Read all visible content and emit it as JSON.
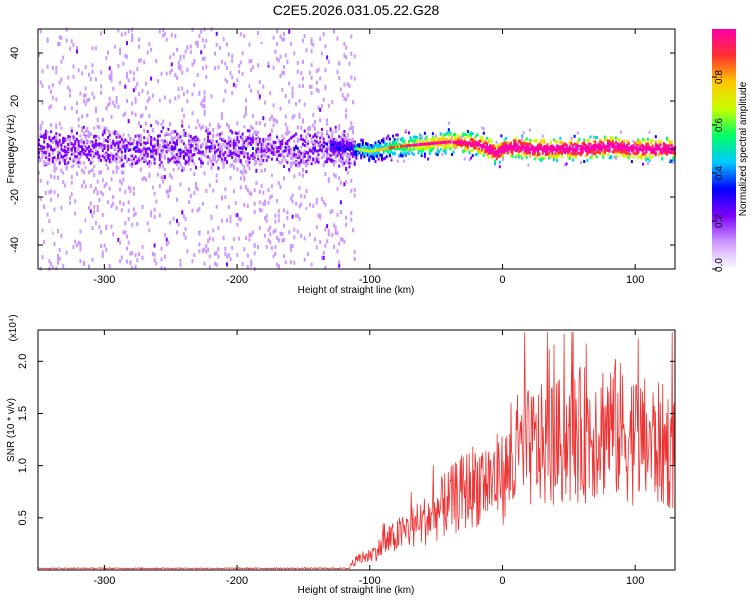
{
  "title": "C2E5.2026.031.05.22.G28",
  "chart_data": [
    {
      "type": "heatmap",
      "xlabel": "Height of straight line (km)",
      "ylabel": "Frequency (Hz)",
      "xlim": [
        -350,
        130
      ],
      "ylim": [
        -50,
        50
      ],
      "xticks": [
        -300,
        -200,
        -100,
        0,
        100
      ],
      "yticks": [
        -40,
        -20,
        0,
        20,
        40
      ],
      "colorbar": {
        "label": "Normalized spectral amplitude",
        "range": [
          0,
          1
        ],
        "ticks": [
          "0.0",
          "0.2",
          "0.4",
          "0.6",
          "0.8"
        ],
        "colors": [
          "#ffffff",
          "#cc99ff",
          "#7f00ff",
          "#0000ff",
          "#00c8ff",
          "#00ff64",
          "#c8ff00",
          "#ffc800",
          "#ff3030",
          "#ff00aa"
        ]
      },
      "ridge": {
        "x": [
          -350,
          -300,
          -250,
          -200,
          -150,
          -125,
          -110,
          -100,
          -80,
          -60,
          -40,
          -20,
          -10,
          -5,
          0,
          10,
          20,
          40,
          60,
          80,
          100,
          130
        ],
        "y": [
          0,
          0,
          0,
          0,
          0,
          1,
          0,
          -1,
          1,
          2,
          3,
          2,
          0,
          -2,
          0,
          1,
          0,
          0,
          0,
          1,
          0,
          0
        ]
      }
    },
    {
      "type": "line",
      "xlabel": "Height of straight line (km)",
      "ylabel": "SNR (10 * v/v)",
      "yscale_label": "(x10⁴)",
      "xlim": [
        -350,
        130
      ],
      "ylim": [
        0,
        2.3
      ],
      "xticks": [
        -300,
        -200,
        -100,
        0,
        100
      ],
      "yticks": [
        "0.5",
        "1.0",
        "1.5",
        "2.0"
      ],
      "line_color": "#ee3333",
      "envelope": {
        "x": [
          -350,
          -200,
          -120,
          -110,
          -100,
          -80,
          -60,
          -40,
          -20,
          0,
          20,
          40,
          60,
          80,
          100,
          130
        ],
        "y": [
          0.01,
          0.01,
          0.01,
          0.1,
          0.15,
          0.35,
          0.5,
          0.7,
          0.9,
          0.95,
          1.25,
          1.3,
          1.4,
          1.5,
          1.35,
          1.25
        ]
      }
    }
  ]
}
